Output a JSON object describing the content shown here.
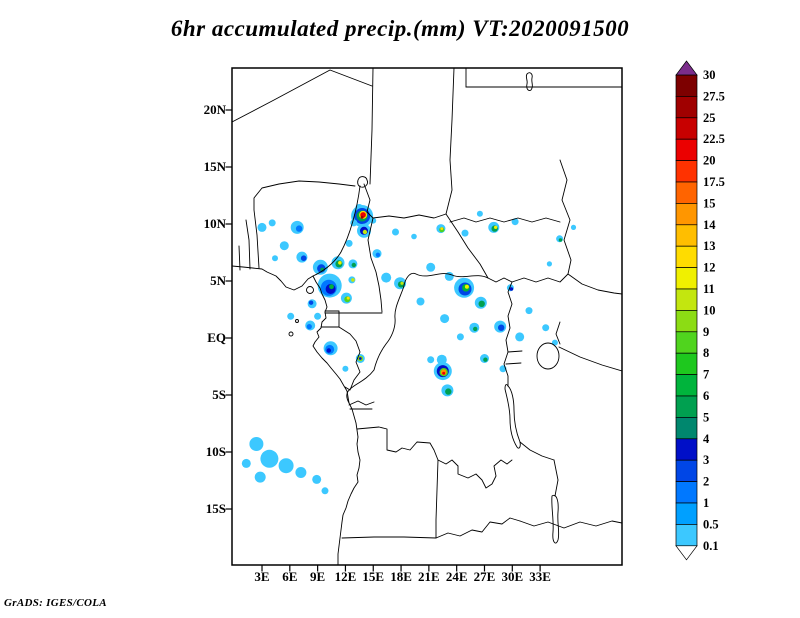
{
  "title": "6hr accumulated precip.(mm) VT:2020091500",
  "credit": "GrADS: IGES/COLA",
  "chart_data": {
    "type": "heatmap",
    "title": "6hr accumulated precip.(mm) VT:2020091500",
    "valid_time": "2020091500",
    "units": "mm",
    "lon_range": [
      0,
      41.8
    ],
    "lat_range": [
      -19.9,
      23.7
    ],
    "grid": false,
    "legend_position": "right",
    "x_axis": {
      "ticks": [
        {
          "v": 3,
          "label": "3E"
        },
        {
          "v": 6,
          "label": "6E"
        },
        {
          "v": 9,
          "label": "9E"
        },
        {
          "v": 12,
          "label": "12E"
        },
        {
          "v": 15,
          "label": "15E"
        },
        {
          "v": 18,
          "label": "18E"
        },
        {
          "v": 21,
          "label": "21E"
        },
        {
          "v": 24,
          "label": "24E"
        },
        {
          "v": 27,
          "label": "27E"
        },
        {
          "v": 30,
          "label": "30E"
        },
        {
          "v": 33,
          "label": "33E"
        }
      ]
    },
    "y_axis": {
      "ticks": [
        {
          "v": 20,
          "label": "20N"
        },
        {
          "v": 15,
          "label": "15N"
        },
        {
          "v": 10,
          "label": "10N"
        },
        {
          "v": 5,
          "label": "5N"
        },
        {
          "v": 0,
          "label": "EQ"
        },
        {
          "v": -5,
          "label": "5S"
        },
        {
          "v": -10,
          "label": "10S"
        },
        {
          "v": -15,
          "label": "15S"
        }
      ]
    },
    "colorbar": {
      "levels": [
        0.1,
        0.5,
        1,
        2,
        3,
        4,
        5,
        6,
        7,
        8,
        9,
        10,
        11,
        12,
        13,
        14,
        15,
        17.5,
        20,
        22.5,
        25,
        27.5,
        30
      ],
      "colors_bottom_to_top": [
        "#3cc8ff",
        "#00a0ff",
        "#0078ff",
        "#0046e6",
        "#000fc8",
        "#00876e",
        "#00a050",
        "#00b43c",
        "#1ec81e",
        "#50d41e",
        "#8cdc14",
        "#c3e60f",
        "#f0f000",
        "#ffdc00",
        "#ffbe00",
        "#ff9600",
        "#ff6400",
        "#ff3200",
        "#eb0000",
        "#c80000",
        "#a00000",
        "#7d0000"
      ],
      "below_color": "#ffffff",
      "above_color": "#7b2d8b"
    },
    "precip_cells": [
      [
        13.5,
        11.4,
        4,
        0.1
      ],
      [
        14.3,
        11.1,
        4,
        0.1
      ],
      [
        13.8,
        10.7,
        11,
        0.1
      ],
      [
        13.8,
        10.7,
        8,
        2
      ],
      [
        13.8,
        10.7,
        5.5,
        5
      ],
      [
        13.9,
        10.8,
        4,
        12
      ],
      [
        13.9,
        10.8,
        2.8,
        20
      ],
      [
        13.8,
        10.6,
        1.5,
        25
      ],
      [
        14.0,
        9.4,
        7,
        0.1
      ],
      [
        14.0,
        9.4,
        4,
        3
      ],
      [
        14.1,
        9.3,
        2.2,
        10
      ],
      [
        12.9,
        10.1,
        3.5,
        0.1
      ],
      [
        15.0,
        10.3,
        3,
        0.1
      ],
      [
        3.0,
        9.7,
        4.5,
        0.1
      ],
      [
        4.1,
        10.1,
        3.5,
        0.1
      ],
      [
        6.8,
        9.7,
        6.5,
        0.1
      ],
      [
        7.0,
        9.6,
        3.2,
        1
      ],
      [
        5.4,
        8.1,
        4.5,
        0.1
      ],
      [
        7.3,
        7.1,
        5.5,
        0.1
      ],
      [
        7.5,
        7.0,
        2.8,
        2
      ],
      [
        4.4,
        7.0,
        3,
        0.1
      ],
      [
        9.3,
        6.2,
        7.5,
        0.1
      ],
      [
        9.4,
        6.1,
        4.2,
        2
      ],
      [
        9.5,
        6.0,
        2,
        5
      ],
      [
        11.2,
        6.6,
        6.5,
        0.1
      ],
      [
        11.3,
        6.5,
        3.6,
        5
      ],
      [
        11.4,
        6.6,
        1.8,
        11
      ],
      [
        12.8,
        6.5,
        4.5,
        0.1
      ],
      [
        12.9,
        6.4,
        2.2,
        5
      ],
      [
        12.4,
        8.3,
        3.5,
        0.1
      ],
      [
        10.3,
        4.6,
        12,
        0.1
      ],
      [
        10.2,
        4.4,
        8,
        1
      ],
      [
        10.4,
        4.3,
        5,
        3
      ],
      [
        10.5,
        4.5,
        2.4,
        6
      ],
      [
        12.1,
        3.5,
        5.5,
        0.1
      ],
      [
        12.2,
        3.4,
        3,
        8
      ],
      [
        12.3,
        3.5,
        1.5,
        12
      ],
      [
        12.7,
        5.1,
        3.5,
        0.1
      ],
      [
        12.8,
        5.1,
        1.8,
        10
      ],
      [
        8.4,
        3.0,
        4.5,
        0.1
      ],
      [
        8.3,
        3.1,
        2.2,
        2
      ],
      [
        9.0,
        1.9,
        3.5,
        0.1
      ],
      [
        15.4,
        7.4,
        4.5,
        0.1
      ],
      [
        15.5,
        7.3,
        2.2,
        1
      ],
      [
        16.4,
        5.3,
        5,
        0.1
      ],
      [
        17.9,
        4.8,
        6,
        0.1
      ],
      [
        18.0,
        4.7,
        3.2,
        5
      ],
      [
        18.1,
        4.8,
        1.6,
        10
      ],
      [
        17.4,
        9.3,
        3.5,
        0.1
      ],
      [
        20.1,
        3.2,
        4,
        0.1
      ],
      [
        21.2,
        6.2,
        4.5,
        0.1
      ],
      [
        19.4,
        8.9,
        2.8,
        0.1
      ],
      [
        22.3,
        9.6,
        4.5,
        0.1
      ],
      [
        22.4,
        9.5,
        2.6,
        8
      ],
      [
        22.4,
        9.6,
        1.4,
        12
      ],
      [
        24.9,
        9.2,
        3.5,
        0.1
      ],
      [
        28.0,
        9.7,
        5.5,
        0.1
      ],
      [
        28.1,
        9.6,
        3.2,
        5
      ],
      [
        28.2,
        9.7,
        1.6,
        11
      ],
      [
        30.3,
        10.2,
        3.5,
        0.1
      ],
      [
        26.5,
        10.9,
        3,
        0.1
      ],
      [
        35.1,
        8.7,
        3.5,
        0.1
      ],
      [
        35.2,
        8.6,
        1.8,
        5
      ],
      [
        36.6,
        9.7,
        2.6,
        0.1
      ],
      [
        34.0,
        6.5,
        2.6,
        0.1
      ],
      [
        24.8,
        4.4,
        10,
        0.1
      ],
      [
        24.9,
        4.3,
        6.5,
        2
      ],
      [
        25.0,
        4.4,
        3.8,
        6
      ],
      [
        25.1,
        4.5,
        2,
        11
      ],
      [
        26.6,
        3.1,
        6,
        0.1
      ],
      [
        26.7,
        3.0,
        3.2,
        5
      ],
      [
        23.2,
        5.4,
        4.5,
        0.1
      ],
      [
        29.8,
        4.4,
        3.5,
        0.1
      ],
      [
        29.9,
        4.3,
        1.8,
        3
      ],
      [
        22.7,
        1.7,
        4.5,
        0.1
      ],
      [
        24.4,
        0.1,
        3.5,
        0.1
      ],
      [
        25.9,
        0.9,
        5,
        0.1
      ],
      [
        26.0,
        0.8,
        2.2,
        5
      ],
      [
        28.7,
        1.0,
        6,
        0.1
      ],
      [
        28.8,
        0.9,
        3.2,
        2
      ],
      [
        30.8,
        0.1,
        4.5,
        0.1
      ],
      [
        31.8,
        2.4,
        3.5,
        0.1
      ],
      [
        33.6,
        0.9,
        3.5,
        0.1
      ],
      [
        34.6,
        -0.4,
        3,
        0.1
      ],
      [
        22.4,
        -1.9,
        5,
        0.1
      ],
      [
        21.2,
        -1.9,
        3.5,
        0.1
      ],
      [
        22.5,
        -2.9,
        9,
        0.1
      ],
      [
        22.5,
        -2.9,
        6,
        3
      ],
      [
        22.6,
        -3.0,
        4.2,
        8
      ],
      [
        22.6,
        -3.0,
        2.8,
        14
      ],
      [
        22.6,
        -3.1,
        1.5,
        20
      ],
      [
        23.0,
        -4.6,
        6,
        0.1
      ],
      [
        23.1,
        -4.7,
        3.2,
        5
      ],
      [
        8.2,
        1.1,
        5,
        0.1
      ],
      [
        8.1,
        1.0,
        2.6,
        1
      ],
      [
        6.1,
        1.9,
        3.5,
        0.1
      ],
      [
        10.4,
        -0.9,
        7,
        0.1
      ],
      [
        10.3,
        -1.0,
        4.5,
        1
      ],
      [
        10.2,
        -1.1,
        2.2,
        3
      ],
      [
        13.6,
        -1.8,
        4.5,
        0.1
      ],
      [
        13.6,
        -1.8,
        2.8,
        9
      ],
      [
        13.6,
        -1.8,
        1.4,
        3
      ],
      [
        12.0,
        -2.7,
        3,
        0.1
      ],
      [
        27.0,
        -1.8,
        4.5,
        0.1
      ],
      [
        27.1,
        -1.9,
        2.2,
        5
      ],
      [
        29.0,
        -2.7,
        3.5,
        0.1
      ],
      [
        2.4,
        -9.3,
        7,
        0.1
      ],
      [
        3.8,
        -10.6,
        9,
        0.1
      ],
      [
        5.6,
        -11.2,
        7.5,
        0.1
      ],
      [
        7.2,
        -11.8,
        5.5,
        0.1
      ],
      [
        8.9,
        -12.4,
        4.5,
        0.1
      ],
      [
        2.8,
        -12.2,
        5.5,
        0.1
      ],
      [
        1.3,
        -11.0,
        4.5,
        0.1
      ],
      [
        9.8,
        -13.4,
        3.5,
        0.1
      ]
    ]
  }
}
